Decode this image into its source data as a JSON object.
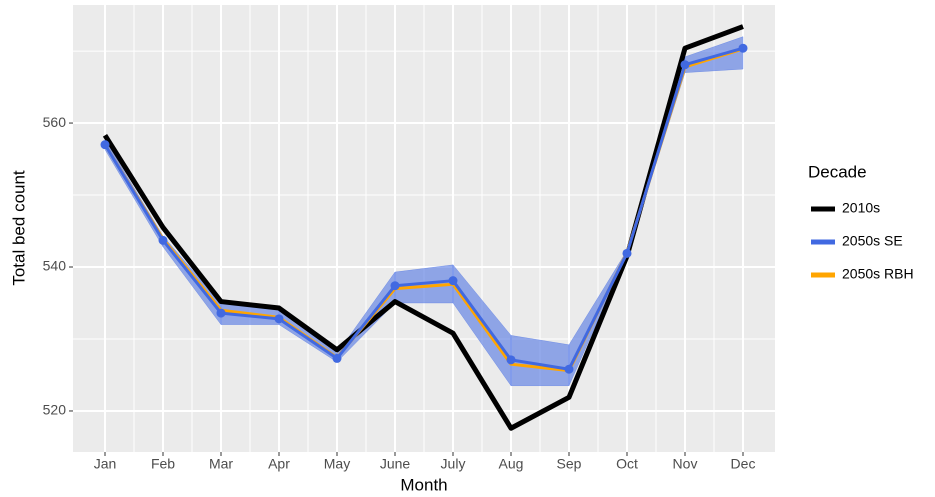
{
  "chart_data": {
    "type": "line",
    "x_label": "Month",
    "y_label": "Total bed count",
    "categories": [
      "Jan",
      "Feb",
      "Mar",
      "Apr",
      "May",
      "June",
      "July",
      "Aug",
      "Sep",
      "Oct",
      "Nov",
      "Dec"
    ],
    "series": [
      {
        "name": "2010s",
        "color": "#000000",
        "values": [
          558.3,
          545.5,
          535.2,
          534.3,
          528.5,
          535.2,
          530.8,
          517.6,
          521.9,
          541.5,
          570.4,
          573.4
        ]
      },
      {
        "name": "2050s SE",
        "color": "#4169e1",
        "points": true,
        "values": [
          557.0,
          543.7,
          533.6,
          532.8,
          527.3,
          537.4,
          538.1,
          527.1,
          525.8,
          541.9,
          568.1,
          570.4
        ],
        "lower": [
          556.3,
          542.8,
          532.0,
          532.0,
          526.8,
          535.0,
          535.0,
          523.5,
          523.5,
          541.7,
          567.0,
          567.5
        ],
        "upper": [
          557.7,
          544.3,
          535.0,
          534.0,
          528.0,
          539.3,
          540.3,
          530.5,
          529.2,
          542.3,
          569.2,
          572.0
        ]
      },
      {
        "name": "2050s RBH",
        "color": "#ffa500",
        "values": [
          557.0,
          543.9,
          534.0,
          533.0,
          527.4,
          537.0,
          537.6,
          526.5,
          525.6,
          542.0,
          567.8,
          570.3
        ]
      }
    ],
    "ylim": [
      514.3,
      576.4
    ],
    "yticks": [
      520,
      540,
      560
    ],
    "minor_yticks": [
      530,
      550,
      570
    ],
    "grid": true,
    "legend_title": "Decade",
    "legend_position": "right"
  }
}
